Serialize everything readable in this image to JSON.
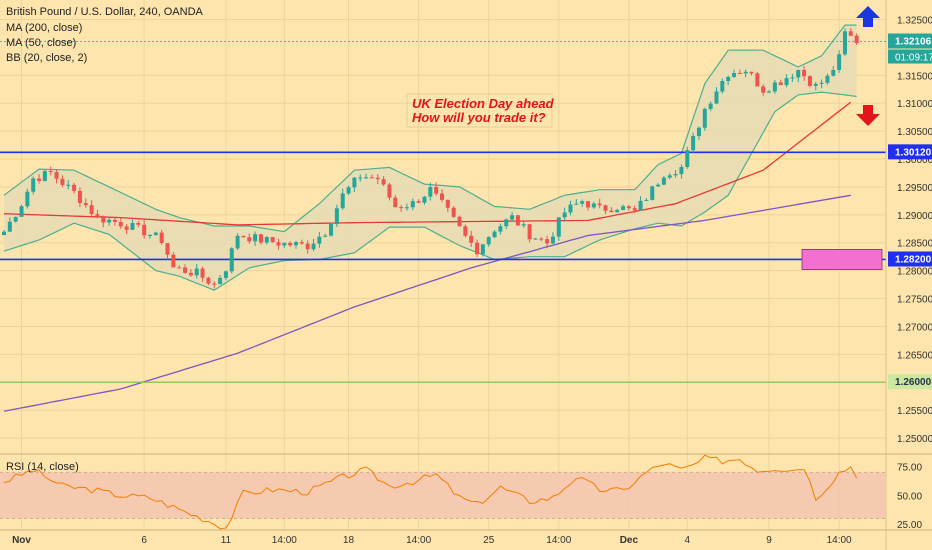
{
  "header": {
    "symbol_line": "British Pound / U.S. Dollar, 240, OANDA",
    "indicators": [
      "MA (200, close)",
      "MA (50, close)",
      "BB (20, close, 2)"
    ]
  },
  "annotation": {
    "line1": "UK Election Day ahead",
    "line2": "How will you trade it?"
  },
  "price_tags": {
    "last_price": "1.32106",
    "countdown": "01:09:17",
    "level_high": "1.30120",
    "level_low": "1.28200",
    "level_green": "1.26000"
  },
  "colors": {
    "background": "#fde5ad",
    "bull": "#26a69a",
    "bear": "#ef5350",
    "ma200": "#7e57c2",
    "ma50": "#e53935",
    "bb_fill": "#e6dcb4",
    "bb_line": "#4caf8f",
    "level_line": "#1f2ef0",
    "green_line": "#8bc34a",
    "zone": "#f36fd0",
    "rsi_band": "#f4c7b0",
    "rsi_line": "#f57c00",
    "arrow_up": "#1936e0",
    "arrow_down": "#e3141b"
  },
  "rsi": {
    "title": "RSI (14, close)",
    "ticks": [
      "75.00",
      "50.00",
      "25.00"
    ]
  },
  "chart_data": {
    "type": "candlestick",
    "title": "British Pound / U.S. Dollar, 240, OANDA",
    "y_ticks": [
      1.325,
      1.315,
      1.31,
      1.305,
      1.3,
      1.295,
      1.29,
      1.285,
      1.28,
      1.275,
      1.27,
      1.265,
      1.26,
      1.255,
      1.25
    ],
    "y_tick_labels": [
      "1.32500",
      "1.31500",
      "1.31000",
      "1.30500",
      "1.30000",
      "1.29500",
      "1.29000",
      "1.28500",
      "1.28000",
      "1.27500",
      "1.27000",
      "1.26500",
      "1.26000",
      "1.25500",
      "1.25000"
    ],
    "ylim": [
      1.2475,
      1.3285
    ],
    "x_tick_labels": [
      "Nov",
      "6",
      "11",
      "14:00",
      "18",
      "14:00",
      "25",
      "14:00",
      "Dec",
      "4",
      "9",
      "14:00"
    ],
    "x_tick_index": [
      3,
      24,
      38,
      48,
      59,
      71,
      83,
      95,
      107,
      117,
      131,
      143
    ],
    "horizontal_levels": [
      1.3012,
      1.282,
      1.26
    ],
    "zone": [
      1.2802,
      1.2838
    ],
    "anchors": [
      [
        0,
        1.287
      ],
      [
        3,
        1.292
      ],
      [
        5,
        1.2965
      ],
      [
        8,
        1.2975
      ],
      [
        12,
        1.294
      ],
      [
        16,
        1.2895
      ],
      [
        20,
        1.2885
      ],
      [
        24,
        1.287
      ],
      [
        27,
        1.2855
      ],
      [
        29,
        1.2805
      ],
      [
        33,
        1.2795
      ],
      [
        36,
        1.2775
      ],
      [
        38,
        1.2805
      ],
      [
        40,
        1.2865
      ],
      [
        44,
        1.2855
      ],
      [
        48,
        1.2848
      ],
      [
        52,
        1.2845
      ],
      [
        55,
        1.287
      ],
      [
        58,
        1.2935
      ],
      [
        61,
        1.297
      ],
      [
        64,
        1.2965
      ],
      [
        67,
        1.2915
      ],
      [
        70,
        1.292
      ],
      [
        73,
        1.2945
      ],
      [
        76,
        1.2905
      ],
      [
        79,
        1.286
      ],
      [
        81,
        1.2838
      ],
      [
        84,
        1.2875
      ],
      [
        87,
        1.2895
      ],
      [
        90,
        1.2865
      ],
      [
        93,
        1.285
      ],
      [
        96,
        1.2905
      ],
      [
        99,
        1.2925
      ],
      [
        102,
        1.291
      ],
      [
        105,
        1.2915
      ],
      [
        108,
        1.2905
      ],
      [
        111,
        1.2945
      ],
      [
        113,
        1.2975
      ],
      [
        116,
        1.2985
      ],
      [
        118,
        1.3035
      ],
      [
        120,
        1.309
      ],
      [
        122,
        1.3125
      ],
      [
        124,
        1.3155
      ],
      [
        127,
        1.316
      ],
      [
        130,
        1.3125
      ],
      [
        133,
        1.314
      ],
      [
        136,
        1.316
      ],
      [
        139,
        1.313
      ],
      [
        141,
        1.3145
      ],
      [
        143,
        1.318
      ],
      [
        144,
        1.3225
      ],
      [
        146,
        1.3212
      ]
    ],
    "ma200": [
      [
        0,
        1.2548
      ],
      [
        20,
        1.2588
      ],
      [
        40,
        1.2652
      ],
      [
        60,
        1.2735
      ],
      [
        80,
        1.2805
      ],
      [
        100,
        1.2863
      ],
      [
        120,
        1.289
      ],
      [
        145,
        1.2935
      ]
    ],
    "ma50": [
      [
        0,
        1.2902
      ],
      [
        20,
        1.2895
      ],
      [
        40,
        1.2882
      ],
      [
        60,
        1.2886
      ],
      [
        80,
        1.2888
      ],
      [
        100,
        1.289
      ],
      [
        115,
        1.292
      ],
      [
        130,
        1.298
      ],
      [
        145,
        1.3102
      ]
    ],
    "bb_upper": [
      [
        0,
        1.2935
      ],
      [
        6,
        1.2982
      ],
      [
        12,
        1.298
      ],
      [
        18,
        1.295
      ],
      [
        26,
        1.291
      ],
      [
        30,
        1.2895
      ],
      [
        36,
        1.288
      ],
      [
        42,
        1.288
      ],
      [
        48,
        1.287
      ],
      [
        54,
        1.292
      ],
      [
        60,
        1.298
      ],
      [
        66,
        1.2985
      ],
      [
        72,
        1.2955
      ],
      [
        78,
        1.295
      ],
      [
        84,
        1.2915
      ],
      [
        90,
        1.291
      ],
      [
        96,
        1.2935
      ],
      [
        102,
        1.2945
      ],
      [
        108,
        1.2945
      ],
      [
        112,
        1.299
      ],
      [
        116,
        1.301
      ],
      [
        120,
        1.3135
      ],
      [
        124,
        1.3195
      ],
      [
        130,
        1.3195
      ],
      [
        136,
        1.3165
      ],
      [
        140,
        1.3185
      ],
      [
        144,
        1.324
      ],
      [
        146,
        1.324
      ]
    ],
    "bb_lower": [
      [
        0,
        1.2835
      ],
      [
        6,
        1.2855
      ],
      [
        12,
        1.2885
      ],
      [
        18,
        1.2865
      ],
      [
        26,
        1.28
      ],
      [
        30,
        1.279
      ],
      [
        36,
        1.2765
      ],
      [
        42,
        1.2805
      ],
      [
        48,
        1.2818
      ],
      [
        54,
        1.282
      ],
      [
        60,
        1.2832
      ],
      [
        66,
        1.2878
      ],
      [
        72,
        1.2878
      ],
      [
        78,
        1.2845
      ],
      [
        84,
        1.282
      ],
      [
        90,
        1.2825
      ],
      [
        96,
        1.2825
      ],
      [
        102,
        1.2855
      ],
      [
        108,
        1.2875
      ],
      [
        112,
        1.2885
      ],
      [
        116,
        1.288
      ],
      [
        120,
        1.2905
      ],
      [
        124,
        1.2935
      ],
      [
        128,
        1.301
      ],
      [
        132,
        1.3085
      ],
      [
        136,
        1.3115
      ],
      [
        140,
        1.312
      ],
      [
        144,
        1.3115
      ],
      [
        146,
        1.3112
      ]
    ],
    "rsi_range": [
      20,
      85
    ],
    "rsi_band": [
      30,
      70
    ],
    "rsi_anchors": [
      [
        0,
        62
      ],
      [
        5,
        72
      ],
      [
        10,
        58
      ],
      [
        15,
        55
      ],
      [
        20,
        50
      ],
      [
        25,
        48
      ],
      [
        30,
        38
      ],
      [
        35,
        28
      ],
      [
        38,
        22
      ],
      [
        41,
        52
      ],
      [
        46,
        55
      ],
      [
        52,
        53
      ],
      [
        58,
        66
      ],
      [
        62,
        72
      ],
      [
        66,
        58
      ],
      [
        70,
        62
      ],
      [
        74,
        68
      ],
      [
        78,
        48
      ],
      [
        81,
        42
      ],
      [
        85,
        57
      ],
      [
        90,
        45
      ],
      [
        94,
        48
      ],
      [
        98,
        66
      ],
      [
        102,
        55
      ],
      [
        106,
        54
      ],
      [
        110,
        70
      ],
      [
        113,
        78
      ],
      [
        116,
        72
      ],
      [
        118,
        76
      ],
      [
        120,
        82
      ],
      [
        123,
        80
      ],
      [
        126,
        82
      ],
      [
        129,
        72
      ],
      [
        132,
        74
      ],
      [
        135,
        72
      ],
      [
        137,
        75
      ],
      [
        139,
        48
      ],
      [
        141,
        58
      ],
      [
        143,
        70
      ],
      [
        145,
        75
      ],
      [
        146,
        68
      ]
    ]
  }
}
